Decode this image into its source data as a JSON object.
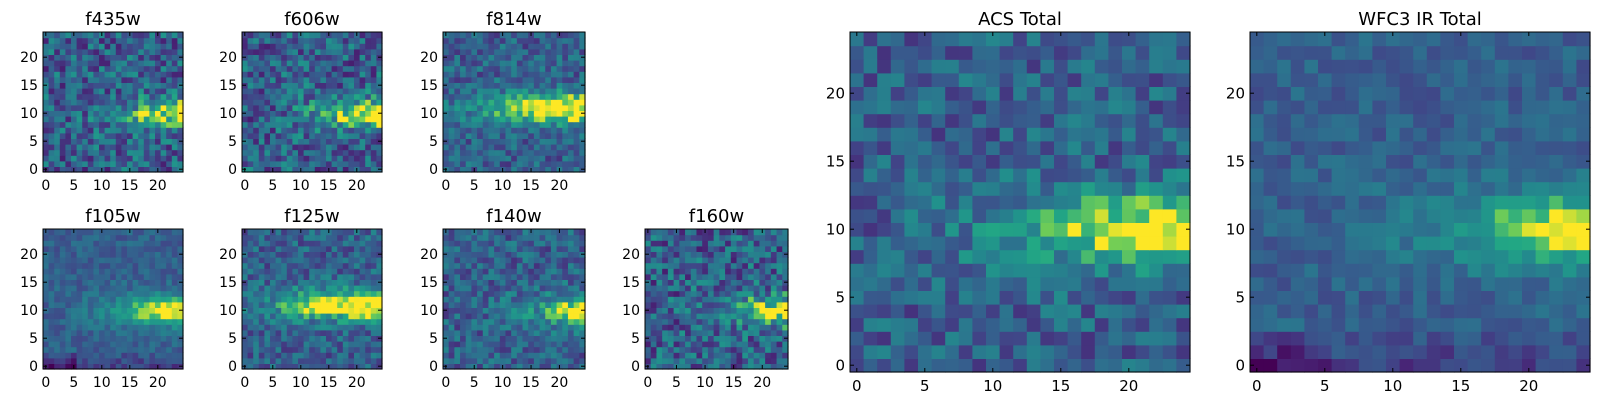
{
  "chart_data": [
    {
      "type": "heatmap",
      "title": "f435w",
      "xlabel": "",
      "ylabel": "",
      "x_range": [
        0,
        25
      ],
      "y_range": [
        0,
        25
      ],
      "xticks": [
        0,
        5,
        10,
        15,
        20
      ],
      "yticks": [
        0,
        5,
        10,
        15,
        20
      ],
      "colormap": "viridis",
      "grid": false,
      "description_fields": {
        "band_center_row": 10,
        "band_start_col": 17,
        "noise": "high"
      }
    },
    {
      "type": "heatmap",
      "title": "f606w",
      "xlabel": "",
      "ylabel": "",
      "x_range": [
        0,
        25
      ],
      "y_range": [
        0,
        25
      ],
      "xticks": [
        0,
        5,
        10,
        15,
        20
      ],
      "yticks": [
        0,
        5,
        10,
        15,
        20
      ],
      "colormap": "viridis",
      "grid": false,
      "description_fields": {
        "band_center_row": 10,
        "band_start_col": 16,
        "noise": "high"
      }
    },
    {
      "type": "heatmap",
      "title": "f814w",
      "xlabel": "",
      "ylabel": "",
      "x_range": [
        0,
        25
      ],
      "y_range": [
        0,
        25
      ],
      "xticks": [
        0,
        5,
        10,
        15,
        20
      ],
      "yticks": [
        0,
        5,
        10,
        15,
        20
      ],
      "colormap": "viridis",
      "grid": false,
      "description_fields": {
        "band_center_row": 11,
        "band_start_col": 9,
        "noise": "medium"
      }
    },
    {
      "type": "heatmap",
      "title": "f105w",
      "xlabel": "",
      "ylabel": "",
      "x_range": [
        0,
        25
      ],
      "y_range": [
        0,
        25
      ],
      "xticks": [
        0,
        5,
        10,
        15,
        20
      ],
      "yticks": [
        0,
        5,
        10,
        15,
        20
      ],
      "colormap": "viridis",
      "grid": false,
      "description_fields": {
        "band_center_row": 10,
        "band_start_col": 15,
        "noise": "low"
      }
    },
    {
      "type": "heatmap",
      "title": "f125w",
      "xlabel": "",
      "ylabel": "",
      "x_range": [
        0,
        25
      ],
      "y_range": [
        0,
        25
      ],
      "xticks": [
        0,
        5,
        10,
        15,
        20
      ],
      "yticks": [
        0,
        5,
        10,
        15,
        20
      ],
      "colormap": "viridis",
      "grid": false,
      "description_fields": {
        "band_center_row": 11,
        "band_start_col": 8,
        "noise": "medium"
      }
    },
    {
      "type": "heatmap",
      "title": "f140w",
      "xlabel": "",
      "ylabel": "",
      "x_range": [
        0,
        25
      ],
      "y_range": [
        0,
        25
      ],
      "xticks": [
        0,
        5,
        10,
        15,
        20
      ],
      "yticks": [
        0,
        5,
        10,
        15,
        20
      ],
      "colormap": "viridis",
      "grid": false,
      "description_fields": {
        "band_center_row": 10,
        "band_start_col": 18,
        "noise": "medium"
      }
    },
    {
      "type": "heatmap",
      "title": "f160w",
      "xlabel": "",
      "ylabel": "",
      "x_range": [
        0,
        25
      ],
      "y_range": [
        0,
        25
      ],
      "xticks": [
        0,
        5,
        10,
        15,
        20
      ],
      "yticks": [
        0,
        5,
        10,
        15,
        20
      ],
      "colormap": "viridis",
      "grid": false,
      "description_fields": {
        "band_center_row": 10,
        "band_start_col": 17,
        "noise": "high"
      }
    },
    {
      "type": "heatmap",
      "title": "ACS Total",
      "xlabel": "",
      "ylabel": "",
      "x_range": [
        0,
        25
      ],
      "y_range": [
        0,
        25
      ],
      "xticks": [
        0,
        5,
        10,
        15,
        20
      ],
      "yticks": [
        0,
        5,
        10,
        15,
        20
      ],
      "colormap": "viridis",
      "grid": false,
      "description_fields": {
        "band_center_row": 10,
        "band_start_col": 14,
        "noise": "medium"
      }
    },
    {
      "type": "heatmap",
      "title": "WFC3 IR Total",
      "xlabel": "",
      "ylabel": "",
      "x_range": [
        0,
        25
      ],
      "y_range": [
        0,
        25
      ],
      "xticks": [
        0,
        5,
        10,
        15,
        20
      ],
      "yticks": [
        0,
        5,
        10,
        15,
        20
      ],
      "colormap": "viridis",
      "grid": false,
      "description_fields": {
        "band_center_row": 10,
        "band_start_col": 17,
        "noise": "low"
      }
    }
  ]
}
